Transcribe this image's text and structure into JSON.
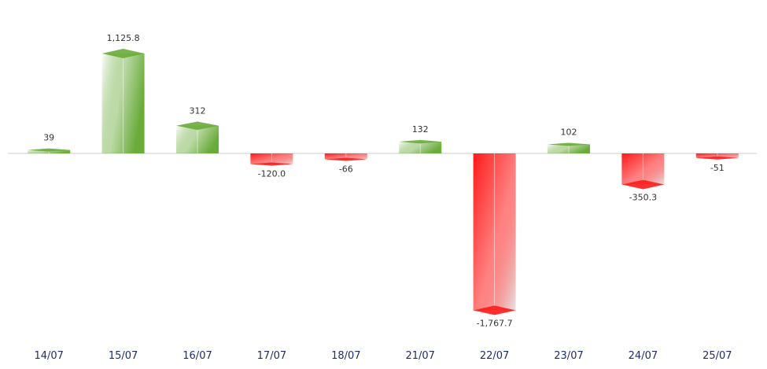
{
  "chart_data": {
    "type": "bar",
    "categories": [
      "14/07",
      "15/07",
      "16/07",
      "17/07",
      "18/07",
      "21/07",
      "22/07",
      "23/07",
      "24/07",
      "25/07"
    ],
    "values": [
      39,
      1125.8,
      312,
      -120.0,
      -66,
      132,
      -1767.7,
      102,
      -350.3,
      -51
    ],
    "value_labels": [
      "39",
      "1,125.8",
      "312",
      "-120.0",
      "-66",
      "132",
      "-1,767.7",
      "102",
      "-350.3",
      "-51"
    ],
    "positive_color": "#6aab3a",
    "negative_color": "#ff1a1a"
  }
}
